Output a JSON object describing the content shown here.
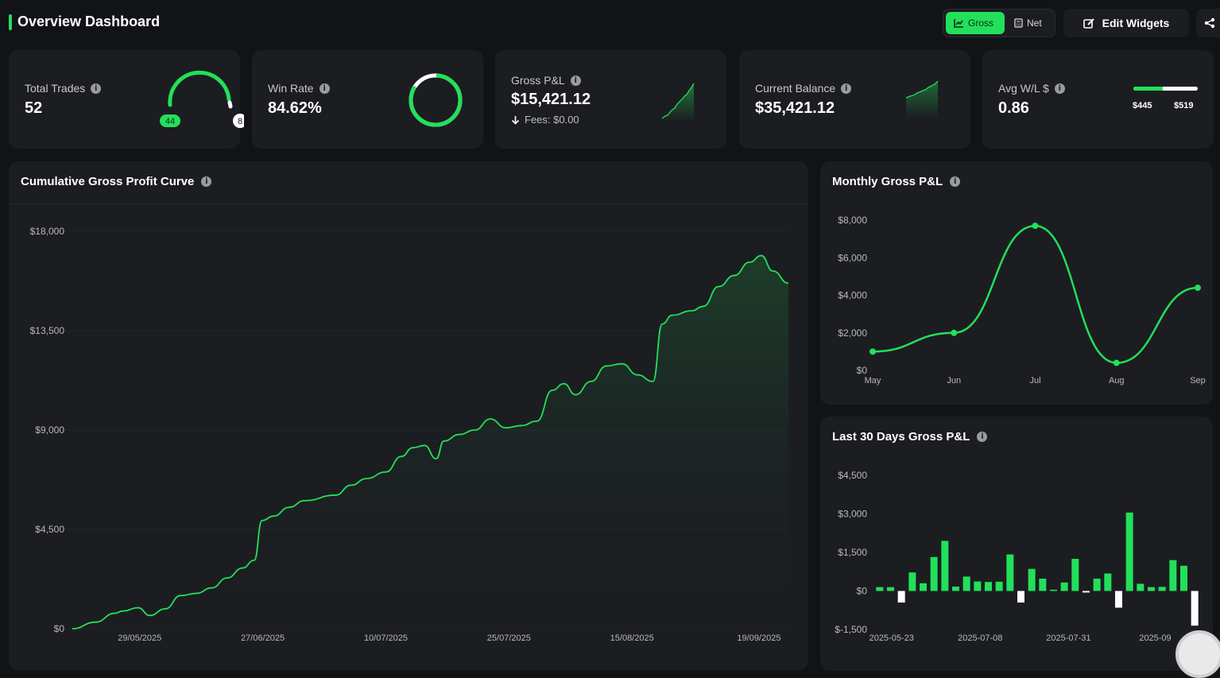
{
  "header": {
    "title": "Overview Dashboard",
    "toggle_gross": "Gross",
    "toggle_net": "Net",
    "edit_widgets": "Edit Widgets"
  },
  "stats": {
    "total_trades": {
      "label": "Total Trades",
      "value": "52",
      "wins": "44",
      "losses": "8"
    },
    "win_rate": {
      "label": "Win Rate",
      "value": "84.62%",
      "fraction": 0.8462
    },
    "gross_pnl": {
      "label": "Gross P&L",
      "value": "$15,421.12",
      "fees": "Fees: $0.00"
    },
    "current_balance": {
      "label": "Current Balance",
      "value": "$35,421.12"
    },
    "avg_wl": {
      "label": "Avg W/L $",
      "value": "0.86",
      "avg_win": "$445",
      "avg_loss": "$519"
    }
  },
  "colors": {
    "accent": "#22e05a",
    "card": "#1c1d21",
    "bg": "#121316"
  },
  "chart_data": [
    {
      "type": "area",
      "title": "Cumulative Gross Profit Curve",
      "ylim": [
        0,
        18000
      ],
      "y_ticks": [
        "$0",
        "$4,500",
        "$9,000",
        "$13,500",
        "$18,000"
      ],
      "y_tick_values": [
        0,
        4500,
        9000,
        13500,
        18000
      ],
      "x_ticks": [
        "29/05/2025",
        "27/06/2025",
        "10/07/2025",
        "25/07/2025",
        "15/08/2025",
        "19/09/2025"
      ],
      "x_tick_positions": [
        0.087,
        0.246,
        0.405,
        0.564,
        0.723,
        0.887
      ],
      "points": [
        [
          0,
          0
        ],
        [
          0.03,
          300
        ],
        [
          0.055,
          700
        ],
        [
          0.065,
          800
        ],
        [
          0.085,
          950
        ],
        [
          0.1,
          600
        ],
        [
          0.12,
          900
        ],
        [
          0.14,
          1500
        ],
        [
          0.16,
          1600
        ],
        [
          0.18,
          1850
        ],
        [
          0.2,
          2300
        ],
        [
          0.22,
          2750
        ],
        [
          0.235,
          3100
        ],
        [
          0.245,
          4900
        ],
        [
          0.26,
          5100
        ],
        [
          0.28,
          5500
        ],
        [
          0.3,
          5800
        ],
        [
          0.34,
          6050
        ],
        [
          0.36,
          6500
        ],
        [
          0.38,
          6800
        ],
        [
          0.405,
          7100
        ],
        [
          0.425,
          7800
        ],
        [
          0.44,
          8200
        ],
        [
          0.455,
          8300
        ],
        [
          0.47,
          7700
        ],
        [
          0.48,
          8500
        ],
        [
          0.5,
          8800
        ],
        [
          0.52,
          9000
        ],
        [
          0.54,
          9500
        ],
        [
          0.56,
          9100
        ],
        [
          0.58,
          9200
        ],
        [
          0.6,
          9400
        ],
        [
          0.62,
          10800
        ],
        [
          0.635,
          11100
        ],
        [
          0.65,
          10600
        ],
        [
          0.67,
          11200
        ],
        [
          0.69,
          11900
        ],
        [
          0.71,
          12000
        ],
        [
          0.73,
          11500
        ],
        [
          0.75,
          11200
        ],
        [
          0.762,
          13800
        ],
        [
          0.775,
          14200
        ],
        [
          0.8,
          14400
        ],
        [
          0.815,
          14600
        ],
        [
          0.835,
          15500
        ],
        [
          0.855,
          16000
        ],
        [
          0.875,
          16600
        ],
        [
          0.89,
          16900
        ],
        [
          0.905,
          16200
        ],
        [
          0.925,
          15650
        ]
      ]
    },
    {
      "type": "line",
      "title": "Monthly Gross P&L",
      "categories": [
        "May",
        "Jun",
        "Jul",
        "Aug",
        "Sep"
      ],
      "values": [
        1000,
        2000,
        7700,
        400,
        4400
      ],
      "ylim": [
        0,
        8000
      ],
      "y_ticks": [
        "$0",
        "$2,000",
        "$4,000",
        "$6,000",
        "$8,000"
      ],
      "y_tick_values": [
        0,
        2000,
        4000,
        6000,
        8000
      ]
    },
    {
      "type": "bar",
      "title": "Last 30 Days Gross P&L",
      "ylim": [
        -1500,
        4500
      ],
      "y_ticks": [
        "$-1,500",
        "$0",
        "$1,500",
        "$3,000",
        "$4,500"
      ],
      "y_tick_values": [
        -1500,
        0,
        1500,
        3000,
        4500
      ],
      "x_ticks": [
        "2025-05-23",
        "2025-07-08",
        "2025-07-31",
        "2025-09"
      ],
      "x_tick_positions": [
        0.053,
        0.325,
        0.596,
        0.862
      ],
      "values": [
        150,
        150,
        -450,
        720,
        300,
        1320,
        1950,
        170,
        560,
        370,
        350,
        360,
        1420,
        -450,
        860,
        480,
        50,
        330,
        1250,
        -60,
        480,
        680,
        -650,
        3050,
        280,
        150,
        160,
        1200,
        980,
        -1350
      ]
    }
  ]
}
